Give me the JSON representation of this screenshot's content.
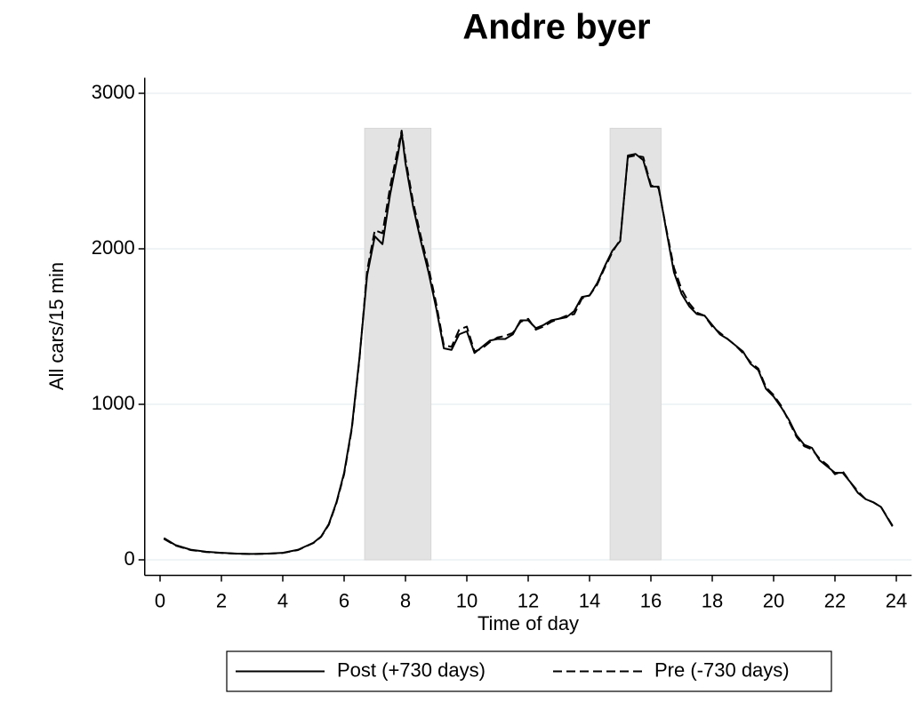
{
  "chart_data": {
    "type": "line",
    "title": "Andre byer",
    "xlabel": "Time of day",
    "ylabel": "All cars/15 min",
    "x": [
      0.125,
      0.5,
      1,
      1.5,
      2,
      2.5,
      3,
      3.5,
      4,
      4.5,
      5,
      5.25,
      5.5,
      5.75,
      6,
      6.25,
      6.5,
      6.75,
      7,
      7.25,
      7.5,
      7.75,
      7.875,
      8,
      8.25,
      8.5,
      8.75,
      9,
      9.25,
      9.5,
      9.75,
      10,
      10.25,
      10.5,
      10.75,
      11,
      11.25,
      11.5,
      11.75,
      12,
      12.25,
      12.5,
      12.75,
      13,
      13.25,
      13.5,
      13.75,
      14,
      14.25,
      14.5,
      14.75,
      15,
      15.25,
      15.5,
      15.75,
      16,
      16.25,
      16.5,
      16.75,
      17,
      17.25,
      17.5,
      17.75,
      18,
      18.25,
      18.5,
      18.75,
      19,
      19.25,
      19.5,
      19.75,
      20,
      20.25,
      20.5,
      20.75,
      21,
      21.25,
      21.5,
      21.75,
      22,
      22.25,
      22.5,
      22.75,
      23,
      23.25,
      23.5,
      23.875
    ],
    "series": [
      {
        "name": "Post (+730 days)",
        "color": "#000000",
        "style": "solid",
        "values": [
          140,
          95,
          65,
          52,
          45,
          40,
          38,
          40,
          45,
          65,
          110,
          150,
          230,
          370,
          560,
          850,
          1300,
          1830,
          2080,
          2030,
          2350,
          2600,
          2750,
          2550,
          2270,
          2050,
          1850,
          1620,
          1360,
          1350,
          1450,
          1470,
          1330,
          1370,
          1410,
          1420,
          1420,
          1450,
          1540,
          1540,
          1490,
          1510,
          1540,
          1550,
          1560,
          1600,
          1690,
          1700,
          1780,
          1890,
          1990,
          2050,
          2600,
          2610,
          2570,
          2400,
          2400,
          2120,
          1850,
          1710,
          1630,
          1580,
          1570,
          1510,
          1450,
          1420,
          1380,
          1340,
          1260,
          1220,
          1100,
          1050,
          980,
          900,
          800,
          740,
          720,
          640,
          600,
          560,
          560,
          500,
          430,
          390,
          370,
          340,
          215
        ]
      },
      {
        "name": "Pre (-730 days)",
        "color": "#000000",
        "style": "dashed",
        "values": [
          135,
          92,
          63,
          50,
          44,
          39,
          37,
          39,
          44,
          63,
          108,
          148,
          225,
          365,
          550,
          840,
          1290,
          1860,
          2120,
          2100,
          2400,
          2640,
          2760,
          2580,
          2300,
          2080,
          1880,
          1650,
          1380,
          1370,
          1480,
          1500,
          1340,
          1360,
          1400,
          1430,
          1440,
          1460,
          1530,
          1550,
          1480,
          1500,
          1530,
          1550,
          1570,
          1580,
          1680,
          1700,
          1770,
          1880,
          1980,
          2060,
          2590,
          2600,
          2590,
          2410,
          2390,
          2130,
          1880,
          1740,
          1650,
          1590,
          1570,
          1500,
          1460,
          1420,
          1380,
          1330,
          1270,
          1230,
          1110,
          1060,
          990,
          890,
          790,
          730,
          710,
          650,
          610,
          550,
          570,
          500,
          440,
          390,
          370,
          340,
          220
        ]
      }
    ],
    "shaded_regions": [
      {
        "x": [
          6.67,
          8.83
        ],
        "y": [
          0,
          2775
        ]
      },
      {
        "x": [
          14.67,
          16.33
        ],
        "y": [
          0,
          2775
        ]
      }
    ],
    "shade_color": "#e3e3e3",
    "xlim": [
      -0.5,
      24.5
    ],
    "ylim": [
      -100,
      3100
    ],
    "xticks": [
      0,
      2,
      4,
      6,
      8,
      10,
      12,
      14,
      16,
      18,
      20,
      22,
      24
    ],
    "yticks": [
      0,
      1000,
      2000,
      3000
    ],
    "grid": true,
    "legend": "bottom"
  }
}
